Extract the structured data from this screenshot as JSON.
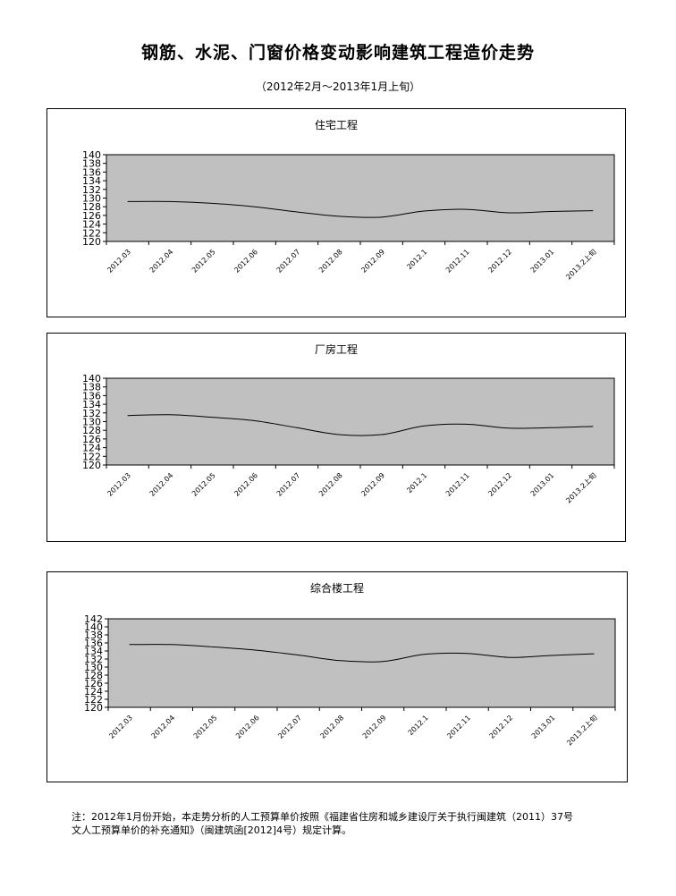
{
  "page": {
    "title": "钢筋、水泥、门窗价格变动影响建筑工程造价走势",
    "subtitle": "（2012年2月～2013年1月上旬）",
    "note_line1": "注：2012年1月份开始，本走势分析的人工预算单价按照《福建省住房和城乡建设厅关于执行闽建筑（2011）37号",
    "note_line2": "文人工预算单价的补充通知》（闽建筑函[2012]4号）规定计算。"
  },
  "chart_data": [
    {
      "type": "line",
      "title": "住宅工程",
      "categories": [
        "2012.03",
        "2012.04",
        "2012.05",
        "2012.06",
        "2012.07",
        "2012.08",
        "2012.09",
        "2012.1",
        "2012.11",
        "2012.12",
        "2013.01",
        "2013.2上旬"
      ],
      "series": [
        {
          "values": [
            129.2,
            129.2,
            128.8,
            128.0,
            126.8,
            125.8,
            125.6,
            127.0,
            127.4,
            126.6,
            126.9,
            127.1
          ]
        }
      ],
      "yticks": [
        120,
        122,
        124,
        126,
        128,
        130,
        132,
        134,
        136,
        138,
        140
      ],
      "ylim": [
        120,
        140
      ],
      "plot_bg": "#c0c0c0",
      "line_color": "#000000"
    },
    {
      "type": "line",
      "title": "厂房工程",
      "categories": [
        "2012.03",
        "2012.04",
        "2012.05",
        "2012.06",
        "2012.07",
        "2012.08",
        "2012.09",
        "2012.1",
        "2012.11",
        "2012.12",
        "2013.01",
        "2013.2上旬"
      ],
      "series": [
        {
          "values": [
            131.4,
            131.6,
            131.0,
            130.2,
            128.6,
            127.0,
            127.0,
            129.0,
            129.4,
            128.5,
            128.6,
            128.9
          ]
        }
      ],
      "yticks": [
        120,
        122,
        124,
        126,
        128,
        130,
        132,
        134,
        136,
        138,
        140
      ],
      "ylim": [
        120,
        140
      ],
      "plot_bg": "#c0c0c0",
      "line_color": "#000000"
    },
    {
      "type": "line",
      "title": "综合楼工程",
      "categories": [
        "2012.03",
        "2012.04",
        "2012.05",
        "2012.06",
        "2012.07",
        "2012.08",
        "2012.09",
        "2012.1",
        "2012.11",
        "2012.12",
        "2013.01",
        "2013.2上旬"
      ],
      "series": [
        {
          "values": [
            135.6,
            135.6,
            135.0,
            134.2,
            133.0,
            131.6,
            131.4,
            133.2,
            133.4,
            132.4,
            132.9,
            133.3
          ]
        }
      ],
      "yticks": [
        120,
        122,
        124,
        126,
        128,
        130,
        132,
        134,
        136,
        138,
        140,
        142
      ],
      "ylim": [
        120,
        142
      ],
      "plot_bg": "#c0c0c0",
      "line_color": "#000000"
    }
  ]
}
